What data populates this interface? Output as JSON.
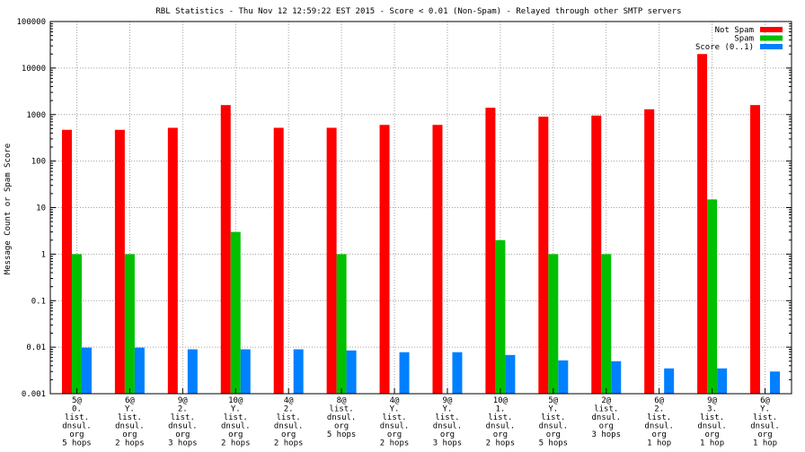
{
  "chart_data": {
    "type": "bar",
    "title": "RBL Statistics - Thu Nov 12 12:59:22 EST 2015 - Score < 0.01 (Non-Spam) - Relayed through other SMTP servers",
    "xlabel": "",
    "ylabel": "Message Count or Spam Score",
    "yscale": "log",
    "ylim": [
      0.001,
      100000
    ],
    "yticks": [
      "0.001",
      "0.01",
      "0.1",
      "1",
      "10",
      "100",
      "1000",
      "10000",
      "100000"
    ],
    "grid": true,
    "legend_position": "top-right",
    "categories": [
      [
        "5@",
        "0.",
        "list.",
        "dnsul.",
        "org",
        "5 hops"
      ],
      [
        "6@",
        "Y.",
        "list.",
        "dnsul.",
        "org",
        "2 hops"
      ],
      [
        "9@",
        "2.",
        "list.",
        "dnsul.",
        "org",
        "3 hops"
      ],
      [
        "10@",
        "Y.",
        "list.",
        "dnsul.",
        "org",
        "2 hops"
      ],
      [
        "4@",
        "2.",
        "list.",
        "dnsul.",
        "org",
        "2 hops"
      ],
      [
        "8@",
        "list.",
        "dnsul.",
        "org",
        "5 hops"
      ],
      [
        "4@",
        "Y.",
        "list.",
        "dnsul.",
        "org",
        "2 hops"
      ],
      [
        "9@",
        "Y.",
        "list.",
        "dnsul.",
        "org",
        "3 hops"
      ],
      [
        "10@",
        "1.",
        "list.",
        "dnsul.",
        "org",
        "2 hops"
      ],
      [
        "5@",
        "Y.",
        "list.",
        "dnsul.",
        "org",
        "5 hops"
      ],
      [
        "2@",
        "list.",
        "dnsul.",
        "org",
        "3 hops"
      ],
      [
        "6@",
        "2.",
        "list.",
        "dnsul.",
        "org",
        "1 hop"
      ],
      [
        "9@",
        "3.",
        "list.",
        "dnsul.",
        "org",
        "1 hop"
      ],
      [
        "6@",
        "Y.",
        "list.",
        "dnsul.",
        "org",
        "1 hop"
      ]
    ],
    "series": [
      {
        "name": "Not Spam",
        "color": "#ff0000",
        "values": [
          470,
          470,
          520,
          1600,
          520,
          520,
          600,
          600,
          1400,
          900,
          950,
          1300,
          20000,
          1600
        ]
      },
      {
        "name": "Spam",
        "color": "#00c000",
        "values": [
          1,
          1,
          null,
          3,
          null,
          1,
          null,
          null,
          2,
          1,
          1,
          null,
          15,
          null
        ]
      },
      {
        "name": "Score (0..1)",
        "color": "#0080ff",
        "values": [
          0.0098,
          0.0098,
          0.009,
          0.009,
          0.009,
          0.0085,
          0.0078,
          0.0078,
          0.0068,
          0.0052,
          0.005,
          0.0035,
          0.0035,
          0.003
        ]
      }
    ]
  }
}
